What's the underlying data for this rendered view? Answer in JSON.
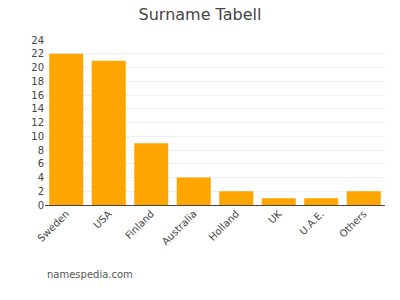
{
  "chart_data": {
    "type": "bar",
    "title": "Surname Tabell",
    "categories": [
      "Sweden",
      "USA",
      "Finland",
      "Australia",
      "Holland",
      "UK",
      "U.A.E.",
      "Others"
    ],
    "values": [
      22,
      21,
      9,
      4,
      2,
      1,
      1,
      2
    ],
    "color": "#FFA500",
    "ylim": [
      0,
      24
    ],
    "yticks": [
      0,
      2,
      4,
      6,
      8,
      10,
      12,
      14,
      16,
      18,
      20,
      22,
      24
    ],
    "grid": true,
    "annotations": [
      "namespedia.com"
    ]
  }
}
